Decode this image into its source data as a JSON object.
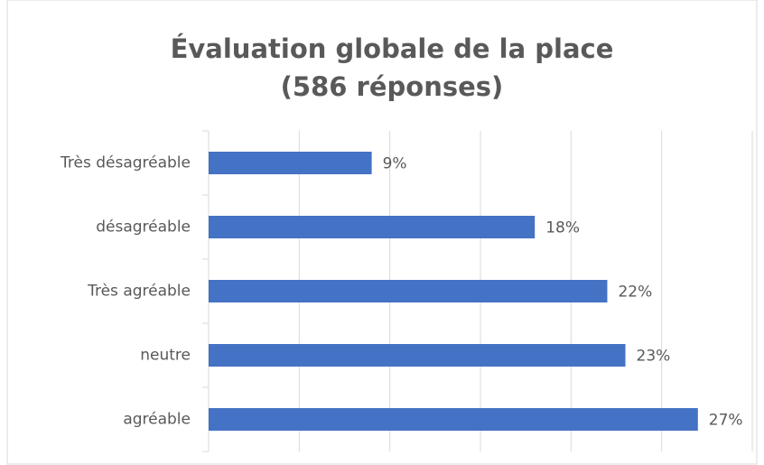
{
  "chart_data": {
    "type": "bar",
    "orientation": "horizontal",
    "title": [
      "Évaluation globale de la place",
      "(586 réponses)"
    ],
    "categories": [
      "Très désagréable",
      "désagréable",
      "Très agréable",
      "neutre",
      "agréable"
    ],
    "values": [
      9,
      18,
      22,
      23,
      27
    ],
    "value_labels": [
      "9%",
      "18%",
      "22%",
      "23%",
      "27%"
    ],
    "color": "#4472c4",
    "xlim": [
      0,
      30
    ],
    "xticks": [
      0,
      5,
      10,
      15,
      20,
      25,
      30
    ],
    "grid": true
  }
}
